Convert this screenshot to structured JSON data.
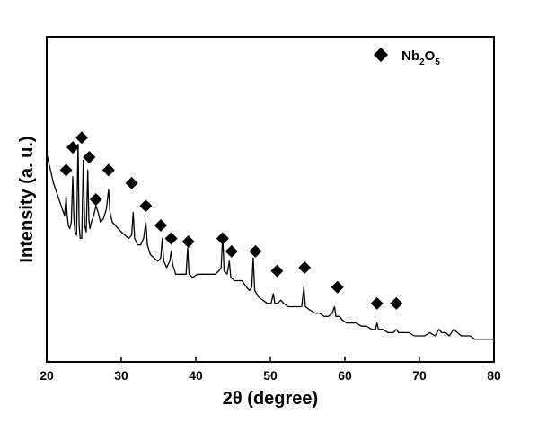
{
  "chart_data": {
    "type": "line",
    "xlabel": "2θ (degree)",
    "ylabel": "Intensity (a. u.)",
    "xlim": [
      20,
      80
    ],
    "ylim": [
      0,
      100
    ],
    "x_ticks": [
      20,
      30,
      40,
      50,
      60,
      70,
      80
    ],
    "y_ticks_labeled": false,
    "grid": false,
    "legend": {
      "position": "top-right",
      "marker": "diamond",
      "label_main": "Nb",
      "sub1": "2",
      "label_mid": "O",
      "sub2": "5"
    },
    "series": [
      {
        "type": "line",
        "color": "#000000",
        "points": [
          [
            20.0,
            64
          ],
          [
            20.3,
            61
          ],
          [
            20.6,
            58
          ],
          [
            20.9,
            55
          ],
          [
            21.2,
            53
          ],
          [
            21.5,
            51
          ],
          [
            21.8,
            49
          ],
          [
            22.1,
            47
          ],
          [
            22.4,
            45
          ],
          [
            22.6,
            51
          ],
          [
            22.75,
            45
          ],
          [
            22.9,
            42
          ],
          [
            23.1,
            41
          ],
          [
            23.3,
            43
          ],
          [
            23.5,
            57
          ],
          [
            23.65,
            44
          ],
          [
            23.8,
            40
          ],
          [
            24.0,
            39
          ],
          [
            24.2,
            67
          ],
          [
            24.35,
            42
          ],
          [
            24.5,
            38
          ],
          [
            24.7,
            38
          ],
          [
            24.9,
            62
          ],
          [
            25.1,
            42
          ],
          [
            25.3,
            40
          ],
          [
            25.5,
            59
          ],
          [
            25.65,
            44
          ],
          [
            25.8,
            41
          ],
          [
            26.0,
            43
          ],
          [
            26.3,
            45
          ],
          [
            26.6,
            48
          ],
          [
            26.9,
            46
          ],
          [
            27.2,
            43
          ],
          [
            27.6,
            44
          ],
          [
            28.0,
            47
          ],
          [
            28.3,
            53
          ],
          [
            28.5,
            46
          ],
          [
            28.8,
            43
          ],
          [
            29.2,
            42
          ],
          [
            29.6,
            41
          ],
          [
            30.0,
            40
          ],
          [
            30.5,
            39
          ],
          [
            31.0,
            38
          ],
          [
            31.4,
            39
          ],
          [
            31.6,
            46
          ],
          [
            31.8,
            38
          ],
          [
            32.2,
            36
          ],
          [
            32.6,
            36
          ],
          [
            33.0,
            38
          ],
          [
            33.3,
            43
          ],
          [
            33.5,
            36
          ],
          [
            33.9,
            33
          ],
          [
            34.4,
            32
          ],
          [
            34.9,
            31
          ],
          [
            35.3,
            32
          ],
          [
            35.5,
            38
          ],
          [
            35.7,
            31
          ],
          [
            36.1,
            29
          ],
          [
            36.5,
            31
          ],
          [
            36.7,
            34
          ],
          [
            36.9,
            30
          ],
          [
            37.3,
            27
          ],
          [
            37.8,
            27
          ],
          [
            38.3,
            27
          ],
          [
            38.7,
            27
          ],
          [
            38.9,
            35
          ],
          [
            39.1,
            27
          ],
          [
            39.6,
            26
          ],
          [
            40.2,
            27
          ],
          [
            40.8,
            27
          ],
          [
            41.4,
            27
          ],
          [
            42.0,
            27
          ],
          [
            42.6,
            27
          ],
          [
            43.1,
            28
          ],
          [
            43.4,
            29
          ],
          [
            43.6,
            39
          ],
          [
            43.8,
            28
          ],
          [
            44.2,
            27
          ],
          [
            44.5,
            31
          ],
          [
            44.7,
            26
          ],
          [
            45.2,
            25
          ],
          [
            45.7,
            25
          ],
          [
            46.2,
            25
          ],
          [
            46.8,
            23
          ],
          [
            47.2,
            22
          ],
          [
            47.5,
            23
          ],
          [
            47.7,
            32
          ],
          [
            47.9,
            22
          ],
          [
            48.4,
            20
          ],
          [
            49.0,
            19
          ],
          [
            49.6,
            18
          ],
          [
            50.1,
            18
          ],
          [
            50.4,
            21
          ],
          [
            50.6,
            18
          ],
          [
            51.0,
            18
          ],
          [
            51.4,
            19
          ],
          [
            51.8,
            18
          ],
          [
            52.4,
            17
          ],
          [
            53.0,
            17
          ],
          [
            53.6,
            17
          ],
          [
            54.2,
            17
          ],
          [
            54.5,
            23
          ],
          [
            54.7,
            17
          ],
          [
            55.3,
            16
          ],
          [
            56.0,
            15
          ],
          [
            56.6,
            15
          ],
          [
            57.2,
            14
          ],
          [
            57.8,
            14
          ],
          [
            58.3,
            15
          ],
          [
            58.6,
            17
          ],
          [
            58.8,
            14
          ],
          [
            59.3,
            14
          ],
          [
            59.6,
            13
          ],
          [
            60.2,
            12
          ],
          [
            60.8,
            12
          ],
          [
            61.5,
            12
          ],
          [
            62.2,
            11
          ],
          [
            62.9,
            11
          ],
          [
            63.6,
            10
          ],
          [
            64.1,
            10
          ],
          [
            64.3,
            12
          ],
          [
            64.5,
            10
          ],
          [
            65.1,
            10
          ],
          [
            65.8,
            9
          ],
          [
            66.5,
            9
          ],
          [
            66.9,
            10
          ],
          [
            67.2,
            9
          ],
          [
            67.9,
            9
          ],
          [
            68.6,
            9
          ],
          [
            69.3,
            8
          ],
          [
            70.0,
            8
          ],
          [
            70.7,
            8
          ],
          [
            71.4,
            9
          ],
          [
            72.1,
            8
          ],
          [
            72.6,
            10
          ],
          [
            73.0,
            9
          ],
          [
            73.5,
            9
          ],
          [
            74.0,
            8
          ],
          [
            74.6,
            10
          ],
          [
            75.1,
            9
          ],
          [
            75.6,
            8
          ],
          [
            76.2,
            8
          ],
          [
            76.8,
            8
          ],
          [
            77.4,
            7
          ],
          [
            78.0,
            7
          ],
          [
            78.6,
            7
          ],
          [
            79.2,
            7
          ],
          [
            80.0,
            7
          ]
        ]
      }
    ],
    "markers": [
      {
        "x": 22.6,
        "y": 59
      },
      {
        "x": 23.5,
        "y": 66
      },
      {
        "x": 24.7,
        "y": 69
      },
      {
        "x": 25.7,
        "y": 63
      },
      {
        "x": 26.6,
        "y": 50
      },
      {
        "x": 28.3,
        "y": 59
      },
      {
        "x": 31.4,
        "y": 55
      },
      {
        "x": 33.3,
        "y": 48
      },
      {
        "x": 35.3,
        "y": 42
      },
      {
        "x": 36.7,
        "y": 38
      },
      {
        "x": 39.0,
        "y": 37
      },
      {
        "x": 43.6,
        "y": 38
      },
      {
        "x": 44.8,
        "y": 34
      },
      {
        "x": 48.0,
        "y": 34
      },
      {
        "x": 50.9,
        "y": 28
      },
      {
        "x": 54.6,
        "y": 29
      },
      {
        "x": 59.0,
        "y": 23
      },
      {
        "x": 64.3,
        "y": 18
      },
      {
        "x": 66.9,
        "y": 18
      }
    ]
  }
}
